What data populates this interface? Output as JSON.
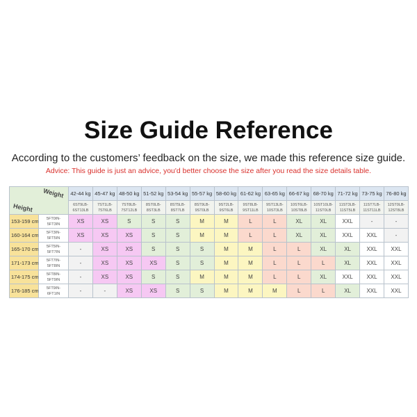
{
  "title": "Size Guide Reference",
  "subtitle": "According to the customers’ feedback on the size, we made this reference size guide.",
  "advice": "Advice: This guide is just an advice, you'd better choose the size after you read the size details table.",
  "table": {
    "corner_weight": "Weight",
    "corner_height": "Height",
    "weights_kg": [
      "42-44 kg",
      "45-47 kg",
      "48-50 kg",
      "51-52 kg",
      "53-54 kg",
      "55-57 kg",
      "58-60 kg",
      "61-62 kg",
      "63-65 kg",
      "66-67 kg",
      "68-70 kg",
      "71-72 kg",
      "73-75 kg",
      "76-80 kg"
    ],
    "weights_st": [
      [
        "6ST9LB-",
        "6ST13LB"
      ],
      [
        "7ST1LB-",
        "7ST6LB"
      ],
      [
        "7ST8LB-",
        "7ST12LB"
      ],
      [
        "8ST0LB-",
        "8ST3LB"
      ],
      [
        "8ST5LB-",
        "8ST7LB"
      ],
      [
        "8ST9LB-",
        "9ST0LB"
      ],
      [
        "9ST2LB-",
        "9ST6LB"
      ],
      [
        "9ST8LB-",
        "9ST11LB"
      ],
      [
        "9ST13LB-",
        "10ST3LB"
      ],
      [
        "10ST6LB-",
        "10ST8LB"
      ],
      [
        "10ST10LB-",
        "11ST0LB"
      ],
      [
        "11ST3LB-",
        "11ST5LB"
      ],
      [
        "11ST7LB-",
        "11ST11LB"
      ],
      [
        "12ST0LB-",
        "12ST8LB"
      ]
    ],
    "rows": [
      {
        "height": "153-159 cm",
        "ft": [
          "5FT0IN-",
          "5FT3IN"
        ],
        "sizes": [
          "XS",
          "XS",
          "S",
          "S",
          "S",
          "M",
          "M",
          "L",
          "L",
          "XL",
          "XL",
          "XXL",
          "-",
          "-"
        ]
      },
      {
        "height": "160-164 cm",
        "ft": [
          "5FT3IN-",
          "5FT5IN"
        ],
        "sizes": [
          "XS",
          "XS",
          "XS",
          "S",
          "S",
          "M",
          "M",
          "L",
          "L",
          "XL",
          "XL",
          "XXL",
          "XXL",
          "-"
        ]
      },
      {
        "height": "165-170 cm",
        "ft": [
          "5FT5IN-",
          "5FT7IN"
        ],
        "sizes": [
          "-",
          "XS",
          "XS",
          "S",
          "S",
          "S",
          "M",
          "M",
          "L",
          "L",
          "XL",
          "XL",
          "XXL",
          "XXL"
        ]
      },
      {
        "height": "171-173 cm",
        "ft": [
          "5FT7IN-",
          "5FT8IN"
        ],
        "sizes": [
          "-",
          "XS",
          "XS",
          "XS",
          "S",
          "S",
          "M",
          "M",
          "L",
          "L",
          "L",
          "XL",
          "XXL",
          "XXL"
        ]
      },
      {
        "height": "174-175 cm",
        "ft": [
          "5FT8IN-",
          "5FT9IN"
        ],
        "sizes": [
          "-",
          "XS",
          "XS",
          "S",
          "S",
          "M",
          "M",
          "M",
          "L",
          "L",
          "XL",
          "XXL",
          "XXL",
          "XXL"
        ]
      },
      {
        "height": "176-185 cm",
        "ft": [
          "5FT9IN-",
          "6FT1IN"
        ],
        "sizes": [
          "-",
          "-",
          "XS",
          "XS",
          "S",
          "S",
          "M",
          "M",
          "M",
          "L",
          "L",
          "XL",
          "XXL",
          "XXL"
        ]
      }
    ]
  },
  "colors": {
    "XS": "#f6c8f3",
    "S": "#e2efd9",
    "M": "#fcf6c1",
    "L": "#fbd9cd",
    "XL": "#e2efd9",
    "XXL": "#ffffff",
    "dash": "#f2f2f2",
    "advice": "#d9302c"
  }
}
